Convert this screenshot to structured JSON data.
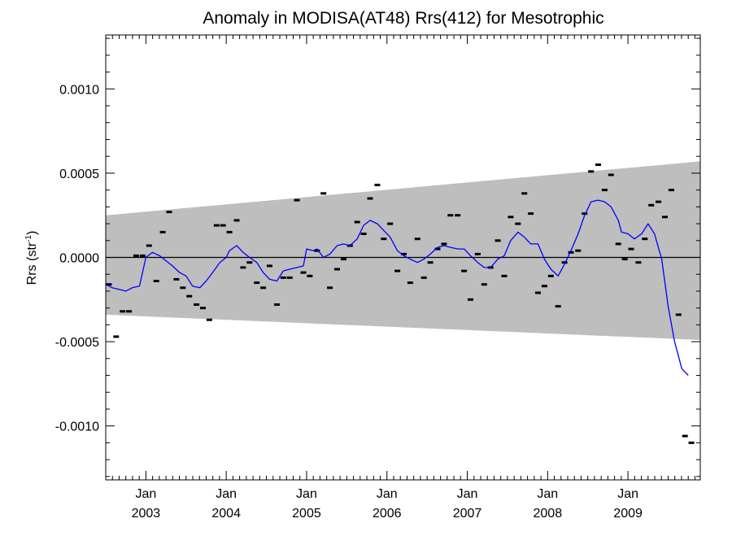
{
  "chart_data": {
    "type": "scatter",
    "title": "Anomaly in MODISA(AT48) Rrs(412) for Mesotrophic",
    "xlabel": "",
    "ylabel": "Rrs (str",
    "ylabel_sup": "-1",
    "ylabel_close": ")",
    "xlim": [
      2002.5,
      2009.9
    ],
    "ylim": [
      -0.00132,
      0.00132
    ],
    "grid": false,
    "colors": {
      "line": "#0000ff",
      "band": "#bebebe",
      "marks": "#000000",
      "zero_line": "#000000"
    },
    "x_ticks": [
      {
        "x": 2003.0,
        "month": "Jan",
        "year": "2003"
      },
      {
        "x": 2004.0,
        "month": "Jan",
        "year": "2004"
      },
      {
        "x": 2005.0,
        "month": "Jan",
        "year": "2005"
      },
      {
        "x": 2006.0,
        "month": "Jan",
        "year": "2006"
      },
      {
        "x": 2007.0,
        "month": "Jan",
        "year": "2007"
      },
      {
        "x": 2008.0,
        "month": "Jan",
        "year": "2008"
      },
      {
        "x": 2009.0,
        "month": "Jan",
        "year": "2009"
      }
    ],
    "y_ticks": [
      {
        "v": 0.001,
        "label": "0.0010"
      },
      {
        "v": 0.0005,
        "label": "0.0005"
      },
      {
        "v": 0.0,
        "label": "0.0000"
      },
      {
        "v": -0.0005,
        "label": "-0.0005"
      },
      {
        "v": -0.001,
        "label": "-0.0010"
      }
    ],
    "band": {
      "x": [
        2002.5,
        2009.9
      ],
      "upper": [
        0.00025,
        0.00057
      ],
      "lower": [
        -0.00034,
        -0.00049
      ]
    },
    "reference_line": 0.0,
    "series": [
      {
        "kind": "monthly_anomalies",
        "points": [
          [
            2002.54,
            -0.00016
          ],
          [
            2002.63,
            -0.00047
          ],
          [
            2002.71,
            -0.00032
          ],
          [
            2002.79,
            -0.00032
          ],
          [
            2002.88,
            1e-05
          ],
          [
            2002.96,
            1e-05
          ],
          [
            2003.04,
            7e-05
          ],
          [
            2003.13,
            -0.00014
          ],
          [
            2003.21,
            0.00015
          ],
          [
            2003.29,
            0.00027
          ],
          [
            2003.38,
            -0.00013
          ],
          [
            2003.46,
            -0.00018
          ],
          [
            2003.54,
            -0.00023
          ],
          [
            2003.63,
            -0.00028
          ],
          [
            2003.71,
            -0.0003
          ],
          [
            2003.79,
            -0.00037
          ],
          [
            2003.88,
            0.00019
          ],
          [
            2003.96,
            0.00019
          ],
          [
            2004.04,
            0.00015
          ],
          [
            2004.13,
            0.00022
          ],
          [
            2004.21,
            -6e-05
          ],
          [
            2004.29,
            -3e-05
          ],
          [
            2004.38,
            -0.00015
          ],
          [
            2004.46,
            -0.00018
          ],
          [
            2004.54,
            -5e-05
          ],
          [
            2004.63,
            -0.00028
          ],
          [
            2004.71,
            -0.00012
          ],
          [
            2004.79,
            -0.00012
          ],
          [
            2004.88,
            0.00034
          ],
          [
            2004.96,
            -9e-05
          ],
          [
            2005.04,
            -0.00011
          ],
          [
            2005.13,
            4e-05
          ],
          [
            2005.21,
            0.00038
          ],
          [
            2005.29,
            -0.00018
          ],
          [
            2005.38,
            -7e-05
          ],
          [
            2005.46,
            -1e-05
          ],
          [
            2005.54,
            7e-05
          ],
          [
            2005.63,
            0.00021
          ],
          [
            2005.71,
            0.00014
          ],
          [
            2005.79,
            0.00035
          ],
          [
            2005.88,
            0.00043
          ],
          [
            2005.96,
            0.00011
          ],
          [
            2006.04,
            0.0002
          ],
          [
            2006.13,
            -8e-05
          ],
          [
            2006.21,
            2e-05
          ],
          [
            2006.29,
            -0.00015
          ],
          [
            2006.38,
            0.00011
          ],
          [
            2006.46,
            -0.00012
          ],
          [
            2006.54,
            -3e-05
          ],
          [
            2006.63,
            5e-05
          ],
          [
            2006.71,
            8e-05
          ],
          [
            2006.79,
            0.00025
          ],
          [
            2006.88,
            0.00025
          ],
          [
            2006.96,
            -8e-05
          ],
          [
            2007.04,
            -0.00025
          ],
          [
            2007.13,
            2e-05
          ],
          [
            2007.21,
            -0.00016
          ],
          [
            2007.29,
            -6e-05
          ],
          [
            2007.38,
            0.0001
          ],
          [
            2007.46,
            -0.00011
          ],
          [
            2007.54,
            0.00024
          ],
          [
            2007.63,
            0.0002
          ],
          [
            2007.71,
            0.00038
          ],
          [
            2007.79,
            0.00026
          ],
          [
            2007.88,
            -0.00021
          ],
          [
            2007.96,
            -0.00017
          ],
          [
            2008.04,
            -0.00011
          ],
          [
            2008.13,
            -0.00029
          ],
          [
            2008.21,
            -3e-05
          ],
          [
            2008.29,
            3e-05
          ],
          [
            2008.38,
            4e-05
          ],
          [
            2008.46,
            0.00026
          ],
          [
            2008.54,
            0.00051
          ],
          [
            2008.63,
            0.00055
          ],
          [
            2008.71,
            0.0004
          ],
          [
            2008.79,
            0.00049
          ],
          [
            2008.88,
            8e-05
          ],
          [
            2008.96,
            -1e-05
          ],
          [
            2009.04,
            5e-05
          ],
          [
            2009.13,
            -3e-05
          ],
          [
            2009.21,
            0.00011
          ],
          [
            2009.29,
            0.00031
          ],
          [
            2009.38,
            0.00033
          ],
          [
            2009.46,
            0.00024
          ],
          [
            2009.54,
            0.0004
          ],
          [
            2009.63,
            -0.00034
          ],
          [
            2009.71,
            -0.00106
          ],
          [
            2009.79,
            -0.0011
          ]
        ]
      },
      {
        "kind": "smoothed_line",
        "points": [
          [
            2002.5,
            -0.00016
          ],
          [
            2002.58,
            -0.00018
          ],
          [
            2002.67,
            -0.00019
          ],
          [
            2002.75,
            -0.0002
          ],
          [
            2002.83,
            -0.00018
          ],
          [
            2002.92,
            -0.00017
          ],
          [
            2003.0,
            0.0
          ],
          [
            2003.08,
            3e-05
          ],
          [
            2003.17,
            1e-05
          ],
          [
            2003.25,
            -2e-05
          ],
          [
            2003.33,
            -5e-05
          ],
          [
            2003.42,
            -9e-05
          ],
          [
            2003.5,
            -0.00011
          ],
          [
            2003.58,
            -0.00017
          ],
          [
            2003.67,
            -0.00018
          ],
          [
            2003.75,
            -0.00014
          ],
          [
            2003.83,
            -9e-05
          ],
          [
            2003.92,
            -3e-05
          ],
          [
            2004.0,
            0.0
          ],
          [
            2004.04,
            4e-05
          ],
          [
            2004.13,
            7e-05
          ],
          [
            2004.21,
            3e-05
          ],
          [
            2004.29,
            0.0
          ],
          [
            2004.38,
            -3e-05
          ],
          [
            2004.46,
            -9e-05
          ],
          [
            2004.54,
            -0.00013
          ],
          [
            2004.63,
            -0.00014
          ],
          [
            2004.71,
            -8e-05
          ],
          [
            2004.79,
            -7e-05
          ],
          [
            2004.88,
            -6e-05
          ],
          [
            2004.96,
            -5e-05
          ],
          [
            2005.0,
            5e-05
          ],
          [
            2005.08,
            4e-05
          ],
          [
            2005.13,
            5e-05
          ],
          [
            2005.21,
            0.0
          ],
          [
            2005.29,
            2e-05
          ],
          [
            2005.38,
            7e-05
          ],
          [
            2005.46,
            8e-05
          ],
          [
            2005.54,
            7e-05
          ],
          [
            2005.63,
            0.00011
          ],
          [
            2005.71,
            0.00019
          ],
          [
            2005.79,
            0.00022
          ],
          [
            2005.88,
            0.0002
          ],
          [
            2005.96,
            0.00016
          ],
          [
            2006.04,
            0.00012
          ],
          [
            2006.13,
            4e-05
          ],
          [
            2006.21,
            1e-05
          ],
          [
            2006.29,
            -1e-05
          ],
          [
            2006.38,
            -3e-05
          ],
          [
            2006.46,
            -1e-05
          ],
          [
            2006.54,
            2e-05
          ],
          [
            2006.63,
            6e-05
          ],
          [
            2006.71,
            7e-05
          ],
          [
            2006.79,
            6e-05
          ],
          [
            2006.88,
            5e-05
          ],
          [
            2006.96,
            5e-05
          ],
          [
            2007.04,
            1e-05
          ],
          [
            2007.13,
            -3e-05
          ],
          [
            2007.21,
            -6e-05
          ],
          [
            2007.29,
            -6e-05
          ],
          [
            2007.38,
            -1e-05
          ],
          [
            2007.46,
            1e-05
          ],
          [
            2007.54,
            0.0001
          ],
          [
            2007.63,
            0.00015
          ],
          [
            2007.71,
            0.00012
          ],
          [
            2007.79,
            8e-05
          ],
          [
            2007.88,
            8e-05
          ],
          [
            2007.96,
            -1e-05
          ],
          [
            2008.04,
            -7e-05
          ],
          [
            2008.13,
            -0.00011
          ],
          [
            2008.21,
            -4e-05
          ],
          [
            2008.29,
            4e-05
          ],
          [
            2008.38,
            0.00014
          ],
          [
            2008.46,
            0.00025
          ],
          [
            2008.54,
            0.00033
          ],
          [
            2008.63,
            0.00034
          ],
          [
            2008.71,
            0.00033
          ],
          [
            2008.79,
            0.0003
          ],
          [
            2008.88,
            0.00022
          ],
          [
            2008.92,
            0.00015
          ],
          [
            2009.0,
            0.00014
          ],
          [
            2009.08,
            0.00011
          ],
          [
            2009.17,
            0.00014
          ],
          [
            2009.25,
            0.0002
          ],
          [
            2009.33,
            0.00014
          ],
          [
            2009.42,
            -1e-05
          ],
          [
            2009.5,
            -0.00029
          ],
          [
            2009.58,
            -0.0005
          ],
          [
            2009.67,
            -0.00066
          ],
          [
            2009.75,
            -0.0007
          ]
        ]
      }
    ]
  }
}
